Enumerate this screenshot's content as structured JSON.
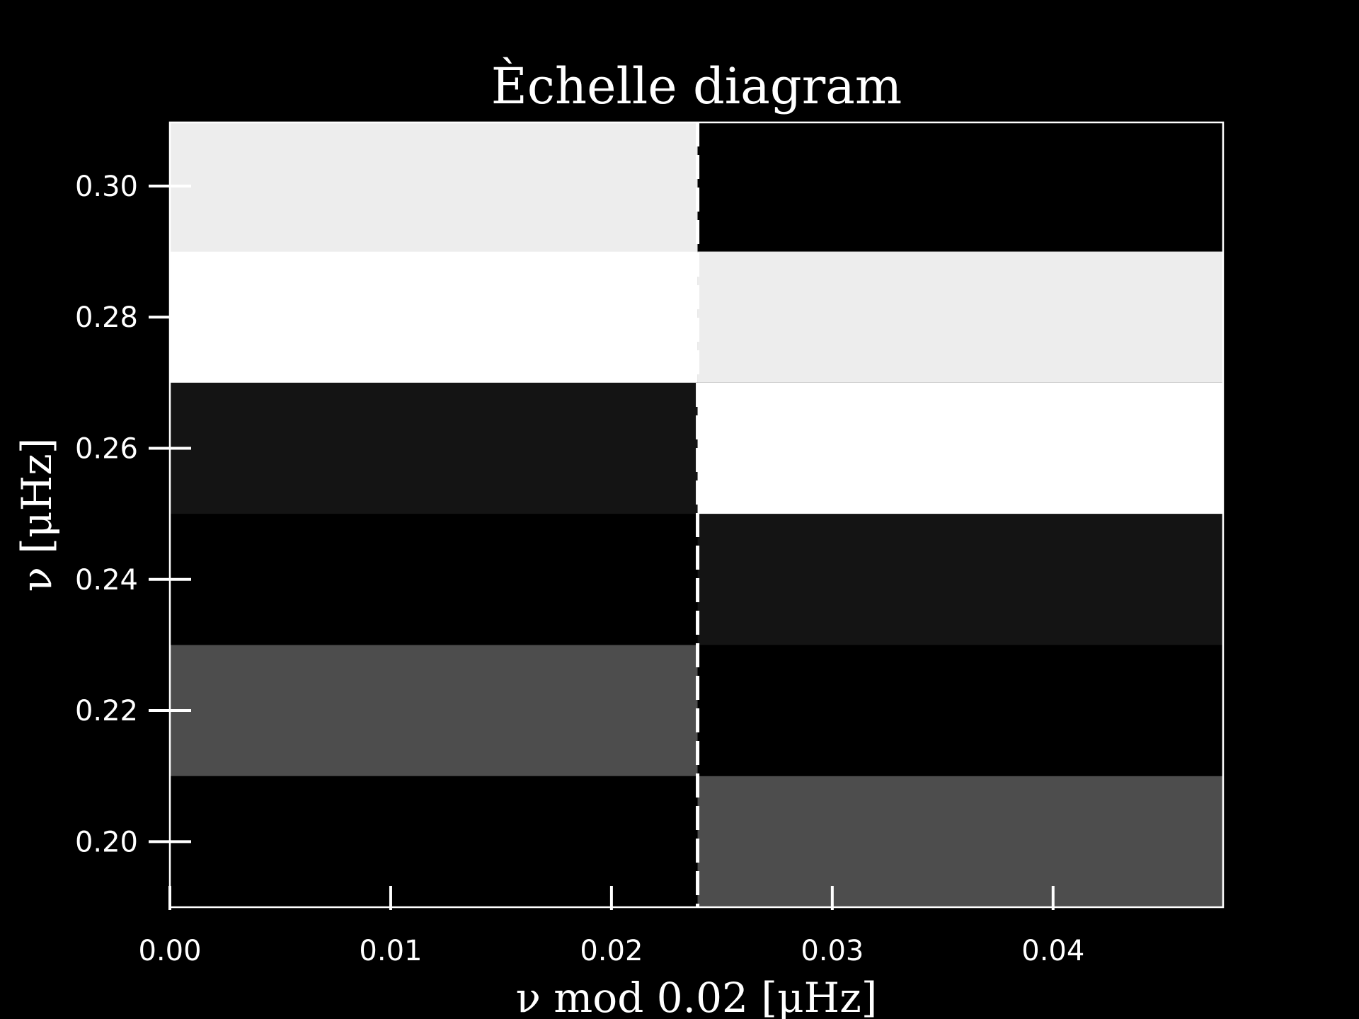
{
  "chart_data": {
    "type": "heatmap",
    "title": "Èchelle diagram",
    "xlabel": "ν mod 0.02 [μHz]",
    "ylabel": "ν [μHz]",
    "xlim": [
      0.0,
      0.0477
    ],
    "ylim": [
      0.19,
      0.3097
    ],
    "x_ticks": [
      {
        "value": 0.0,
        "label": "0.00"
      },
      {
        "value": 0.01,
        "label": "0.01"
      },
      {
        "value": 0.02,
        "label": "0.02"
      },
      {
        "value": 0.03,
        "label": "0.03"
      },
      {
        "value": 0.04,
        "label": "0.04"
      }
    ],
    "y_ticks": [
      {
        "value": 0.2,
        "label": "0.20"
      },
      {
        "value": 0.22,
        "label": "0.22"
      },
      {
        "value": 0.24,
        "label": "0.24"
      },
      {
        "value": 0.26,
        "label": "0.26"
      },
      {
        "value": 0.28,
        "label": "0.28"
      },
      {
        "value": 0.3,
        "label": "0.30"
      }
    ],
    "x_edges": [
      0.0,
      0.0239,
      0.0477
    ],
    "y_edges": [
      0.19,
      0.21,
      0.23,
      0.25,
      0.27,
      0.29,
      0.3097
    ],
    "intensity": [
      [
        0.0,
        0.3
      ],
      [
        0.3,
        0.0
      ],
      [
        0.0,
        0.08
      ],
      [
        0.08,
        1.0
      ],
      [
        1.0,
        0.93
      ],
      [
        0.93,
        0.0
      ]
    ],
    "colormap": "gray",
    "dashed_line_x": 0.0239,
    "background_color": "#000000",
    "foreground_color": "#ffffff",
    "grid": false,
    "legend": "none"
  }
}
